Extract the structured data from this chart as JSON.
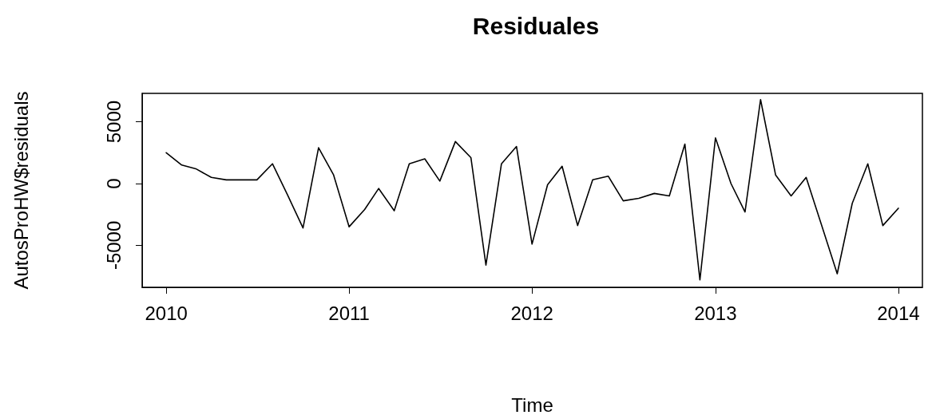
{
  "chart_data": {
    "type": "line",
    "title": "Residuales",
    "xlabel": "Time",
    "ylabel": "AutosProHW$residuals",
    "x": [
      "2010-01",
      "2010-02",
      "2010-03",
      "2010-04",
      "2010-05",
      "2010-06",
      "2010-07",
      "2010-08",
      "2010-09",
      "2010-10",
      "2010-11",
      "2010-12",
      "2011-01",
      "2011-02",
      "2011-03",
      "2011-04",
      "2011-05",
      "2011-06",
      "2011-07",
      "2011-08",
      "2011-09",
      "2011-10",
      "2011-11",
      "2011-12",
      "2012-01",
      "2012-02",
      "2012-03",
      "2012-04",
      "2012-05",
      "2012-06",
      "2012-07",
      "2012-08",
      "2012-09",
      "2012-10",
      "2012-11",
      "2012-12",
      "2013-01",
      "2013-02",
      "2013-03",
      "2013-04",
      "2013-05",
      "2013-06",
      "2013-07",
      "2013-08",
      "2013-09",
      "2013-10",
      "2013-11",
      "2013-12",
      "2014-01"
    ],
    "series": [
      {
        "color": "#000000",
        "values": [
          2500,
          1500,
          1200,
          500,
          300,
          300,
          300,
          1600,
          -1000,
          -3600,
          2900,
          700,
          -3500,
          -2100,
          -400,
          -2200,
          1600,
          2000,
          200,
          3400,
          2100,
          -6600,
          1600,
          3000,
          -4900,
          -100,
          1400,
          -3400,
          300,
          600,
          -1400,
          -1200,
          -800,
          -1000,
          3200,
          -7800,
          3700,
          0,
          -2300,
          6800,
          700,
          -1000,
          500,
          -3400,
          -7300,
          -1600,
          1600,
          -3400,
          -2000
        ]
      }
    ],
    "xlim": [
      "2009-11-14",
      "2014-02-18"
    ],
    "xticks": [
      "2010",
      "2011",
      "2012",
      "2013",
      "2014"
    ],
    "ylim": [
      -8400,
      7300
    ],
    "yticks": [
      -5000,
      0,
      5000
    ],
    "grid": false,
    "legend": false,
    "marker": "none",
    "line_style": "solid"
  }
}
